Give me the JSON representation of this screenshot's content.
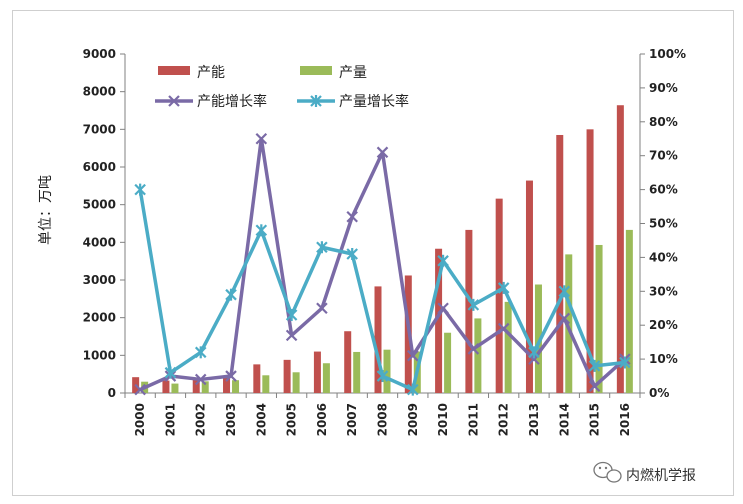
{
  "chart_data": {
    "type": "bar",
    "categories": [
      "2000",
      "2001",
      "2002",
      "2003",
      "2004",
      "2005",
      "2006",
      "2007",
      "2008",
      "2009",
      "2010",
      "2011",
      "2012",
      "2013",
      "2014",
      "2015",
      "2016"
    ],
    "series": [
      {
        "name": "产能",
        "type": "bar",
        "axis": "left",
        "color": "#c0504d",
        "values": [
          420,
          330,
          380,
          400,
          760,
          880,
          1100,
          1640,
          2830,
          3120,
          3830,
          4330,
          5160,
          5640,
          6850,
          7000,
          7640
        ]
      },
      {
        "name": "产量",
        "type": "bar",
        "axis": "left",
        "color": "#9bbb59",
        "values": [
          300,
          250,
          310,
          340,
          470,
          550,
          790,
          1090,
          1150,
          1100,
          1600,
          1980,
          2420,
          2880,
          3680,
          3930,
          4330
        ]
      },
      {
        "name": "产能增长率",
        "type": "line",
        "axis": "right",
        "color": "#7a6aa6",
        "marker": "x",
        "values": [
          1,
          5,
          4,
          5,
          75,
          17,
          25,
          52,
          71,
          11,
          25,
          13,
          19,
          10,
          22,
          2,
          10
        ]
      },
      {
        "name": "产量增长率",
        "type": "line",
        "axis": "right",
        "color": "#4bacc6",
        "marker": "asterisk",
        "values": [
          60,
          6,
          12,
          29,
          48,
          23,
          43,
          41,
          5,
          1,
          39,
          26,
          31,
          12,
          30,
          8,
          9
        ]
      }
    ],
    "ylabel": "单位：万吨",
    "ylim": [
      0,
      9000
    ],
    "yticks": [
      0,
      1000,
      2000,
      3000,
      4000,
      5000,
      6000,
      7000,
      8000,
      9000
    ],
    "y2lim": [
      0,
      100
    ],
    "y2ticks": [
      "0%",
      "10%",
      "20%",
      "30%",
      "40%",
      "50%",
      "60%",
      "70%",
      "80%",
      "90%",
      "100%"
    ],
    "grid": false,
    "legend_position": "top-left"
  },
  "watermark": {
    "text": "内燃机学报",
    "icon": "wechat-icon"
  }
}
